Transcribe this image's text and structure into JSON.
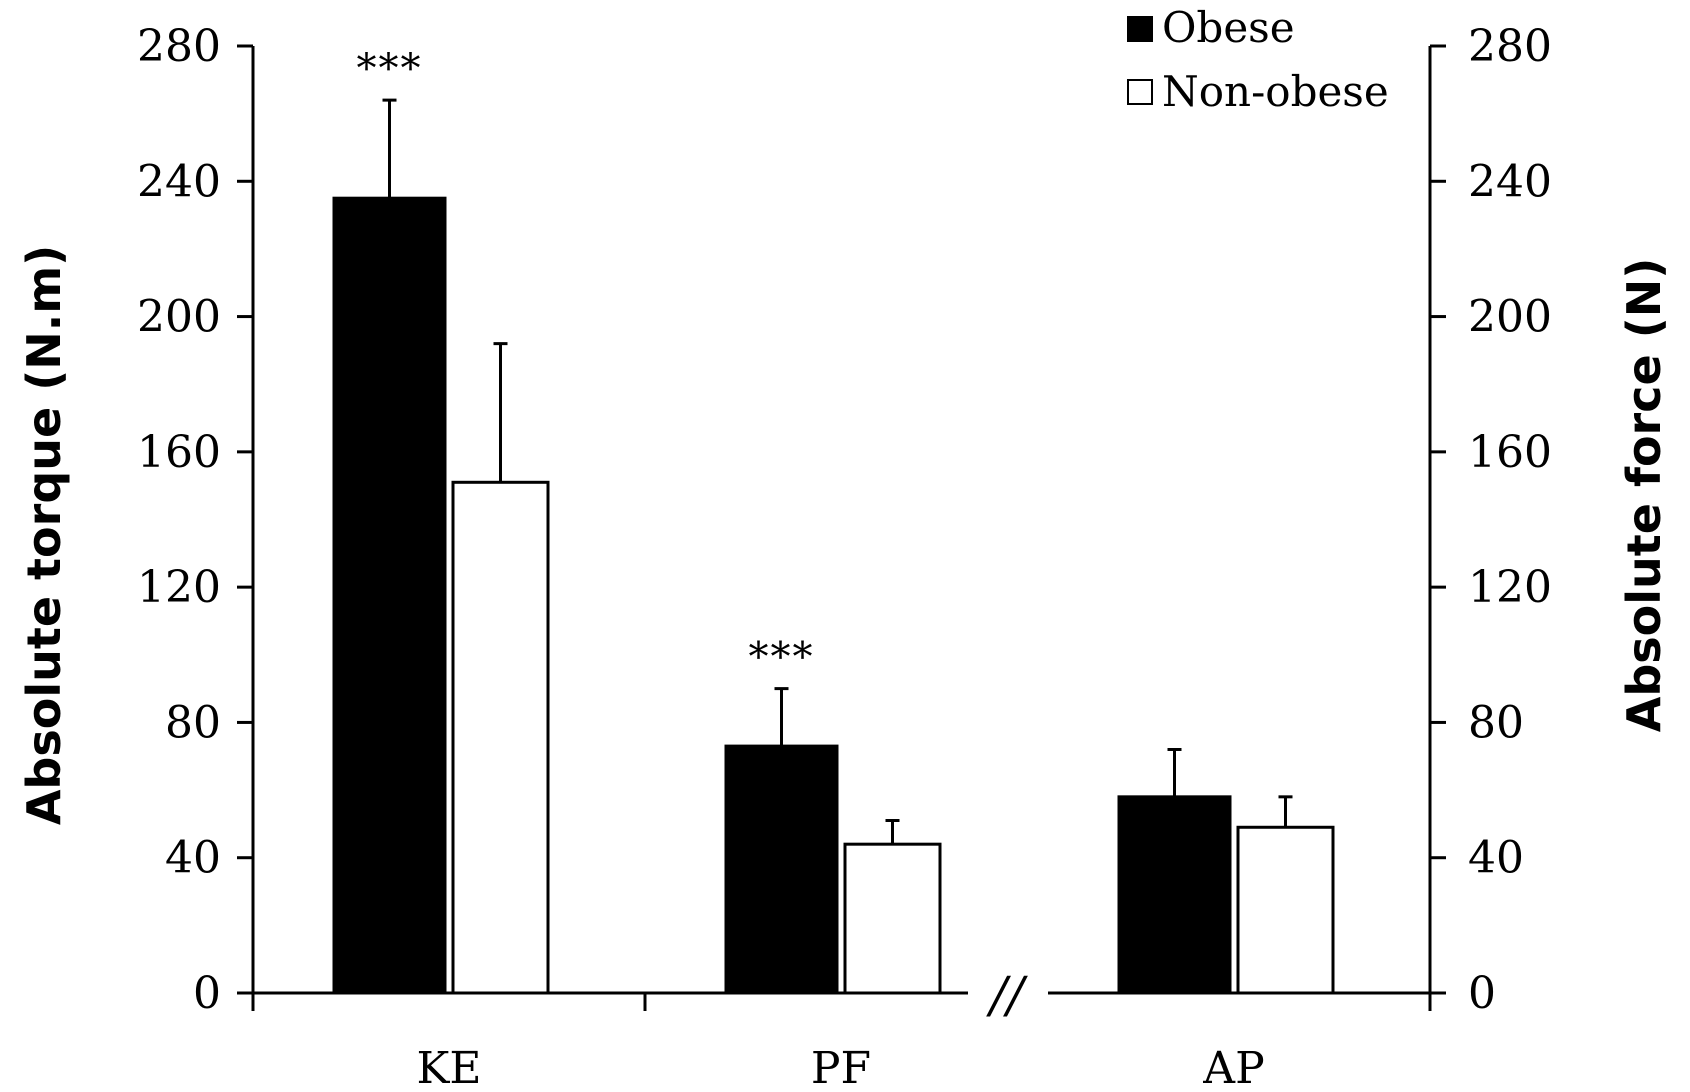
{
  "chart_data": {
    "type": "bar",
    "categories": [
      "KE",
      "PF",
      "AP"
    ],
    "series": [
      {
        "name": "Obese",
        "color": "#000000",
        "values": [
          235,
          73,
          58
        ],
        "errors": [
          29,
          17,
          14
        ]
      },
      {
        "name": "Non-obese",
        "color": "#ffffff",
        "values": [
          151,
          44,
          49
        ],
        "errors": [
          41,
          7,
          9
        ]
      }
    ],
    "significance": [
      "***",
      "***",
      ""
    ],
    "axis_break": "//",
    "ylabel": "Absolute torque (N.m)",
    "y2label": "Absolute force (N)",
    "ylim": [
      0,
      280
    ],
    "y2lim": [
      0,
      280
    ],
    "yticks": [
      0,
      40,
      80,
      120,
      160,
      200,
      240,
      280
    ],
    "y2ticks": [
      0,
      40,
      80,
      120,
      160,
      200,
      240,
      280
    ],
    "grid": false,
    "legend_position": "top-right"
  }
}
